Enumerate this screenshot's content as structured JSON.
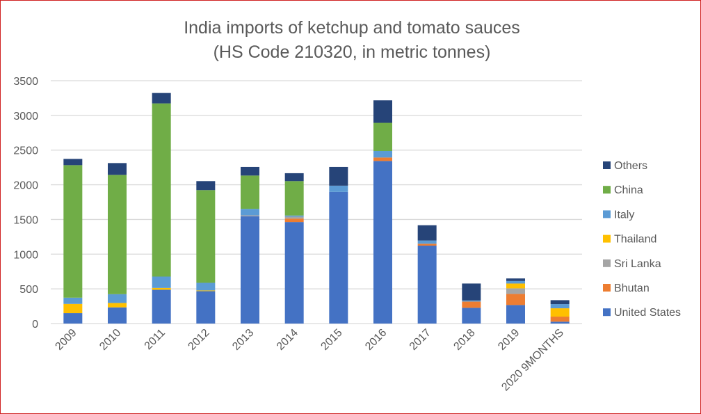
{
  "chart_data": {
    "type": "bar",
    "stacked": true,
    "title": "India imports of ketchup and tomato sauces",
    "subtitle": "(HS Code 210320, in metric tonnes)",
    "xlabel": "",
    "ylabel": "",
    "ylim": [
      0,
      3500
    ],
    "yticks": [
      0,
      500,
      1000,
      1500,
      2000,
      2500,
      3000,
      3500
    ],
    "grid": true,
    "legend_position": "right",
    "categories": [
      "2009",
      "2010",
      "2011",
      "2012",
      "2013",
      "2014",
      "2015",
      "2016",
      "2017",
      "2018",
      "2019",
      "2020 9MONTHS"
    ],
    "series": [
      {
        "name": "United States",
        "color": "#4472C4",
        "values": [
          150,
          233,
          487,
          467,
          1547,
          1463,
          1897,
          2343,
          1123,
          227,
          267,
          27
        ]
      },
      {
        "name": "Bhutan",
        "color": "#ED7D31",
        "values": [
          0,
          0,
          0,
          0,
          0,
          50,
          0,
          50,
          27,
          90,
          160,
          73
        ]
      },
      {
        "name": "Sri Lanka",
        "color": "#A5A5A5",
        "values": [
          0,
          0,
          0,
          0,
          13,
          27,
          0,
          0,
          0,
          0,
          80,
          0
        ]
      },
      {
        "name": "Thailand",
        "color": "#FFC000",
        "values": [
          133,
          64,
          26,
          10,
          0,
          0,
          0,
          0,
          0,
          0,
          70,
          120
        ]
      },
      {
        "name": "Italy",
        "color": "#5B9BD5",
        "values": [
          90,
          126,
          164,
          110,
          93,
          17,
          90,
          94,
          47,
          16,
          36,
          60
        ]
      },
      {
        "name": "China",
        "color": "#70AD47",
        "values": [
          1910,
          1720,
          2496,
          1336,
          480,
          496,
          0,
          406,
          0,
          0,
          0,
          0
        ]
      },
      {
        "name": "Others",
        "color": "#264478",
        "values": [
          90,
          170,
          150,
          130,
          124,
          114,
          270,
          324,
          220,
          244,
          37,
          57
        ]
      }
    ]
  }
}
